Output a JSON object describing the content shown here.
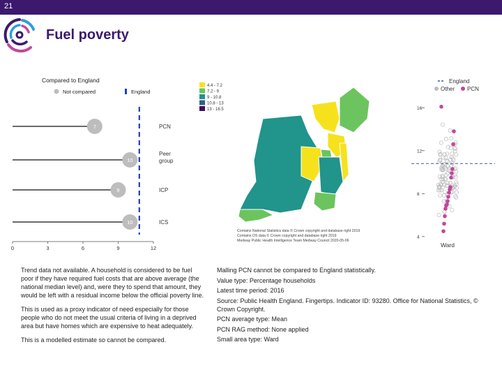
{
  "slide_number": "21",
  "title": "Fuel poverty",
  "chart_data": [
    {
      "type": "bar",
      "orientation": "horizontal",
      "title": "Compared to England",
      "legend": [
        {
          "label": "Not compared",
          "color": "#bdbdbd"
        },
        {
          "label": "England",
          "color": "#1f3fbf"
        }
      ],
      "categories": [
        "PCN",
        "Peer group",
        "ICP",
        "ICS"
      ],
      "category_labels": [
        "PCN",
        "Peer\ngroup",
        "ICP",
        "ICS"
      ],
      "values": [
        7,
        10,
        9,
        10
      ],
      "england_value": 10.8,
      "xlim": [
        0,
        12
      ],
      "xticks": [
        "0",
        "3",
        "6",
        "9",
        "12"
      ],
      "marker_color": "#bdbdbd",
      "bar_color": "#111111"
    },
    {
      "type": "heatmap",
      "subtype": "choropleth",
      "legend": [
        {
          "label": "4.4 - 7.2",
          "color": "#f6e21c"
        },
        {
          "label": "7.2 - 9",
          "color": "#6cc45e"
        },
        {
          "label": "9 - 10.8",
          "color": "#21948b"
        },
        {
          "label": "10.8 - 13",
          "color": "#2f5f8a"
        },
        {
          "label": "13 - 16.5",
          "color": "#3c1159"
        }
      ],
      "credits": [
        "Contains National Statistics data © Crown copyright and database right 2019",
        "Contains OS data © Crown copyright and database right 2019",
        "Medway Public Health Intelligence Team Medway Council 2020-05-06"
      ]
    },
    {
      "type": "scatter",
      "xlabel": "Ward",
      "legend": [
        {
          "label": "England",
          "color": "#3a5a9c"
        },
        {
          "label": "Other",
          "color": "#bdbdbd"
        },
        {
          "label": "PCN",
          "color": "#c2479c"
        }
      ],
      "yticks": [
        "4",
        "8",
        "12",
        "16"
      ],
      "ylim": [
        3.6,
        16.8
      ],
      "england_value": 10.8,
      "pcn_values": [
        16.1,
        13.8,
        12.6,
        10.3,
        9.9,
        9.5,
        8.6,
        8.4,
        8.1,
        7.7,
        7.3,
        7.0,
        6.9,
        6.6,
        5.9,
        5.2,
        4.5
      ]
    }
  ],
  "left_text": [
    "Trend data not available. A household is considered to be fuel poor if they have required fuel costs that are above average (the national median level) and, were they to spend that amount, they would be left with a residual income below the official poverty line.",
    "This is used as a proxy indicator of need especially for those people who do not meet the usual criteria of living in a deprived area but have homes which are expensive to heat adequately.",
    "This is a modelled estimate so cannot be compared."
  ],
  "right_text": [
    "Malling PCN cannot be compared to England statistically.",
    "Value type: Percentage households",
    "Latest time period: 2016",
    "Source: Public Health England. Fingertips. Indicator ID: 93280. Office for National Statistics, © Crown Copyright.",
    "PCN average type: Mean",
    "PCN RAG method: None applied",
    "Small area type: Ward"
  ]
}
